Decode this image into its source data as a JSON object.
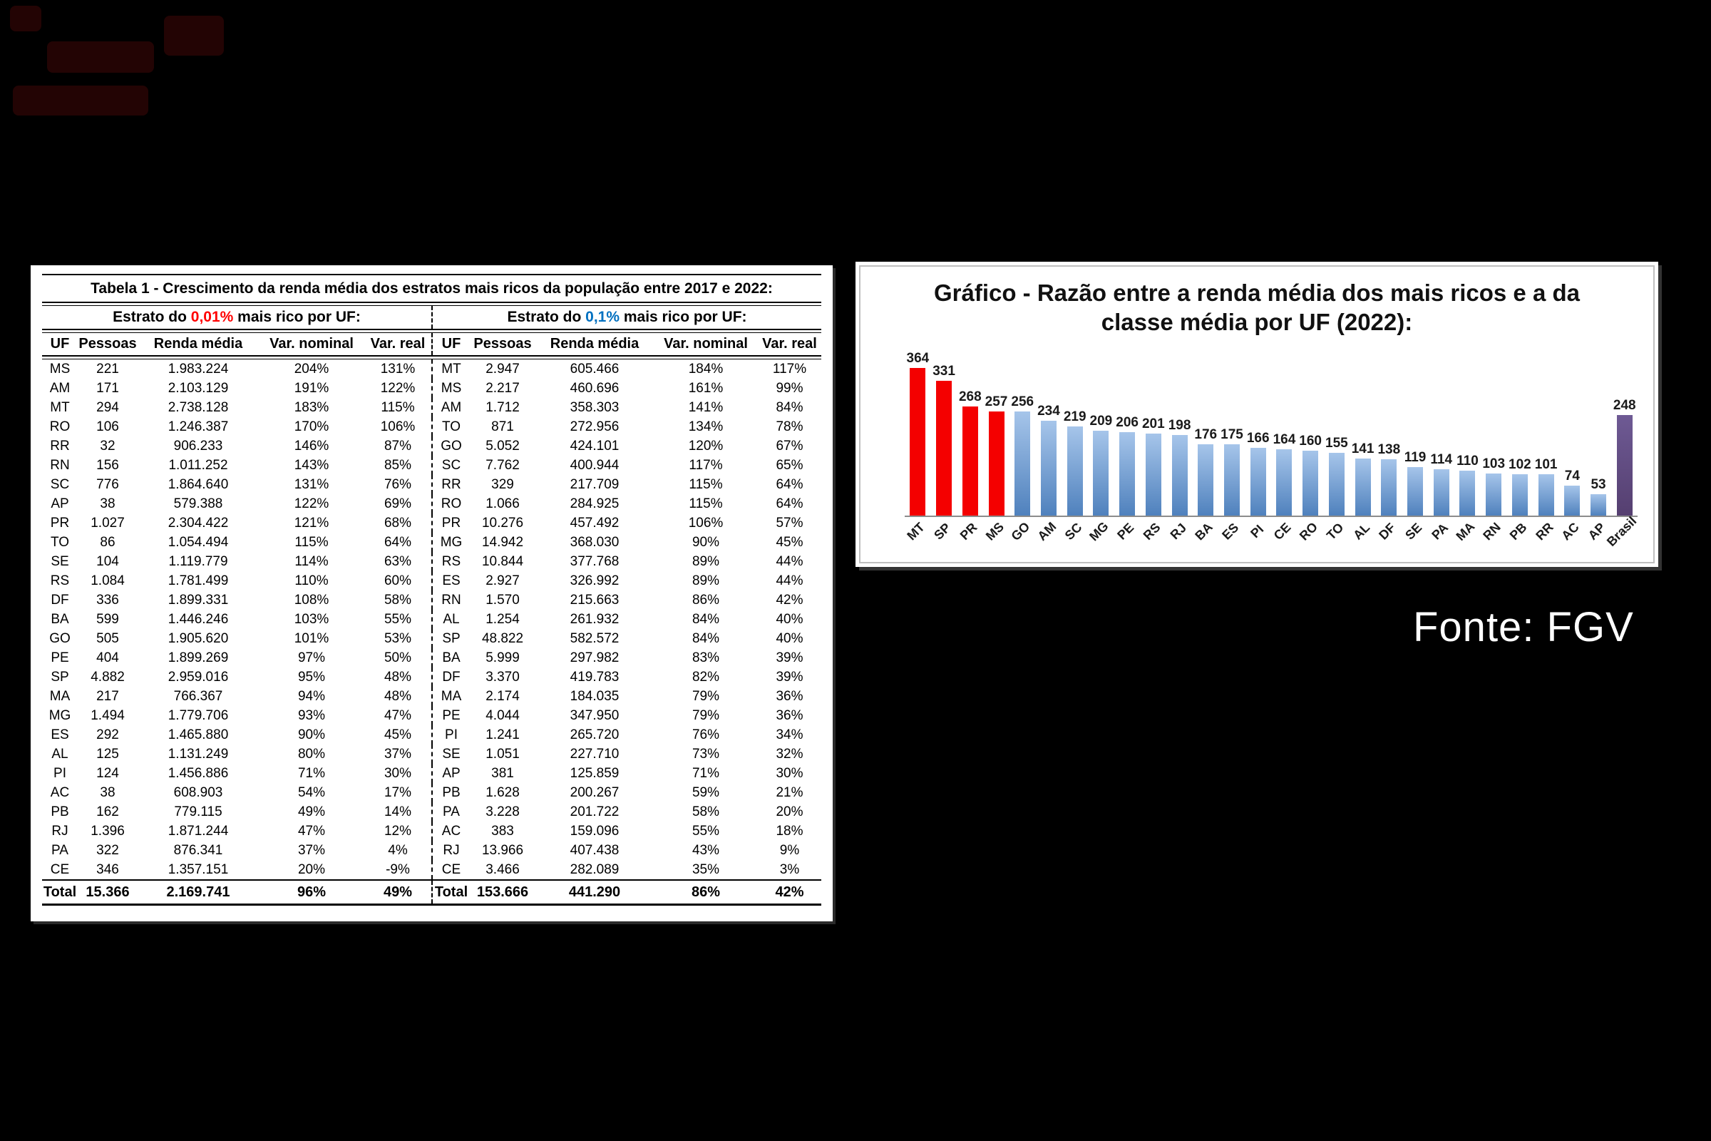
{
  "page": {
    "background": "#000000"
  },
  "fonte": {
    "text": "Fonte: FGV"
  },
  "table": {
    "title": "Tabela 1 - Crescimento da renda média dos estratos mais ricos da população entre 2017 e 2022:",
    "group_headers": {
      "left": {
        "prefix": "Estrato do ",
        "pct": "0,01%",
        "suffix": " mais rico por UF:",
        "pct_color": "#ff0000"
      },
      "right": {
        "prefix": "Estrato do ",
        "pct": "0,1%",
        "suffix": " mais rico por UF:",
        "pct_color": "#0070c0"
      }
    },
    "columns": [
      "UF",
      "Pessoas",
      "Renda média",
      "Var. nominal",
      "Var. real"
    ],
    "left_rows": [
      [
        "MS",
        "221",
        "1.983.224",
        "204%",
        "131%"
      ],
      [
        "AM",
        "171",
        "2.103.129",
        "191%",
        "122%"
      ],
      [
        "MT",
        "294",
        "2.738.128",
        "183%",
        "115%"
      ],
      [
        "RO",
        "106",
        "1.246.387",
        "170%",
        "106%"
      ],
      [
        "RR",
        "32",
        "906.233",
        "146%",
        "87%"
      ],
      [
        "RN",
        "156",
        "1.011.252",
        "143%",
        "85%"
      ],
      [
        "SC",
        "776",
        "1.864.640",
        "131%",
        "76%"
      ],
      [
        "AP",
        "38",
        "579.388",
        "122%",
        "69%"
      ],
      [
        "PR",
        "1.027",
        "2.304.422",
        "121%",
        "68%"
      ],
      [
        "TO",
        "86",
        "1.054.494",
        "115%",
        "64%"
      ],
      [
        "SE",
        "104",
        "1.119.779",
        "114%",
        "63%"
      ],
      [
        "RS",
        "1.084",
        "1.781.499",
        "110%",
        "60%"
      ],
      [
        "DF",
        "336",
        "1.899.331",
        "108%",
        "58%"
      ],
      [
        "BA",
        "599",
        "1.446.246",
        "103%",
        "55%"
      ],
      [
        "GO",
        "505",
        "1.905.620",
        "101%",
        "53%"
      ],
      [
        "PE",
        "404",
        "1.899.269",
        "97%",
        "50%"
      ],
      [
        "SP",
        "4.882",
        "2.959.016",
        "95%",
        "48%"
      ],
      [
        "MA",
        "217",
        "766.367",
        "94%",
        "48%"
      ],
      [
        "MG",
        "1.494",
        "1.779.706",
        "93%",
        "47%"
      ],
      [
        "ES",
        "292",
        "1.465.880",
        "90%",
        "45%"
      ],
      [
        "AL",
        "125",
        "1.131.249",
        "80%",
        "37%"
      ],
      [
        "PI",
        "124",
        "1.456.886",
        "71%",
        "30%"
      ],
      [
        "AC",
        "38",
        "608.903",
        "54%",
        "17%"
      ],
      [
        "PB",
        "162",
        "779.115",
        "49%",
        "14%"
      ],
      [
        "RJ",
        "1.396",
        "1.871.244",
        "47%",
        "12%"
      ],
      [
        "PA",
        "322",
        "876.341",
        "37%",
        "4%"
      ],
      [
        "CE",
        "346",
        "1.357.151",
        "20%",
        "-9%"
      ]
    ],
    "right_rows": [
      [
        "MT",
        "2.947",
        "605.466",
        "184%",
        "117%"
      ],
      [
        "MS",
        "2.217",
        "460.696",
        "161%",
        "99%"
      ],
      [
        "AM",
        "1.712",
        "358.303",
        "141%",
        "84%"
      ],
      [
        "TO",
        "871",
        "272.956",
        "134%",
        "78%"
      ],
      [
        "GO",
        "5.052",
        "424.101",
        "120%",
        "67%"
      ],
      [
        "SC",
        "7.762",
        "400.944",
        "117%",
        "65%"
      ],
      [
        "RR",
        "329",
        "217.709",
        "115%",
        "64%"
      ],
      [
        "RO",
        "1.066",
        "284.925",
        "115%",
        "64%"
      ],
      [
        "PR",
        "10.276",
        "457.492",
        "106%",
        "57%"
      ],
      [
        "MG",
        "14.942",
        "368.030",
        "90%",
        "45%"
      ],
      [
        "RS",
        "10.844",
        "377.768",
        "89%",
        "44%"
      ],
      [
        "ES",
        "2.927",
        "326.992",
        "89%",
        "44%"
      ],
      [
        "RN",
        "1.570",
        "215.663",
        "86%",
        "42%"
      ],
      [
        "AL",
        "1.254",
        "261.932",
        "84%",
        "40%"
      ],
      [
        "SP",
        "48.822",
        "582.572",
        "84%",
        "40%"
      ],
      [
        "BA",
        "5.999",
        "297.982",
        "83%",
        "39%"
      ],
      [
        "DF",
        "3.370",
        "419.783",
        "82%",
        "39%"
      ],
      [
        "MA",
        "2.174",
        "184.035",
        "79%",
        "36%"
      ],
      [
        "PE",
        "4.044",
        "347.950",
        "79%",
        "36%"
      ],
      [
        "PI",
        "1.241",
        "265.720",
        "76%",
        "34%"
      ],
      [
        "SE",
        "1.051",
        "227.710",
        "73%",
        "32%"
      ],
      [
        "AP",
        "381",
        "125.859",
        "71%",
        "30%"
      ],
      [
        "PB",
        "1.628",
        "200.267",
        "59%",
        "21%"
      ],
      [
        "PA",
        "3.228",
        "201.722",
        "58%",
        "20%"
      ],
      [
        "AC",
        "383",
        "159.096",
        "55%",
        "18%"
      ],
      [
        "RJ",
        "13.966",
        "407.438",
        "43%",
        "9%"
      ],
      [
        "CE",
        "3.466",
        "282.089",
        "35%",
        "3%"
      ]
    ],
    "left_total": [
      "Total",
      "15.366",
      "2.169.741",
      "96%",
      "49%"
    ],
    "right_total": [
      "Total",
      "153.666",
      "441.290",
      "86%",
      "42%"
    ]
  },
  "chart_data": {
    "type": "bar",
    "title": "Gráfico - Razão entre a renda média dos mais ricos e a da classe média por UF (2022):",
    "categories": [
      "MT",
      "SP",
      "PR",
      "MS",
      "GO",
      "AM",
      "SC",
      "MG",
      "PE",
      "RS",
      "RJ",
      "BA",
      "ES",
      "PI",
      "CE",
      "RO",
      "TO",
      "AL",
      "DF",
      "SE",
      "PA",
      "MA",
      "RN",
      "PB",
      "RR",
      "AC",
      "AP",
      "Brasil"
    ],
    "values": [
      364,
      331,
      268,
      257,
      256,
      234,
      219,
      209,
      206,
      201,
      198,
      176,
      175,
      166,
      164,
      160,
      155,
      141,
      138,
      119,
      114,
      110,
      103,
      102,
      101,
      74,
      53,
      248
    ],
    "highlight_categories": [
      "MT",
      "SP",
      "PR",
      "MS"
    ],
    "special_category": "Brasil",
    "colors": {
      "highlight": "#f40000",
      "bar_top": "#a6c5ea",
      "bar_bottom": "#4f81bd",
      "special_top": "#6e5a94",
      "special_bottom": "#553f70",
      "axis": "#8c8c8c"
    },
    "xlabel": "",
    "ylabel": "",
    "ylim": [
      0,
      400
    ],
    "grid": false,
    "legend": false,
    "data_labels": true
  }
}
